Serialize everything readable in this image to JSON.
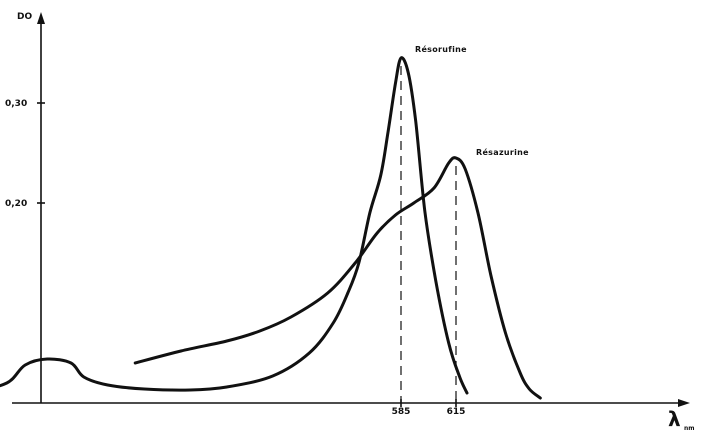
{
  "chart_data": {
    "type": "line",
    "ylabel": "DO",
    "xlabel": "λ",
    "xlabel_suffix": "nm",
    "yticks": [
      0.2,
      0.3
    ],
    "ytick_labels": [
      "0,20",
      "0,30"
    ],
    "xticks": [
      585,
      615
    ],
    "xtick_labels": [
      "585",
      "615"
    ],
    "ylim": [
      0,
      0.35
    ],
    "grid": false,
    "series": [
      {
        "name": "Résorufine",
        "peak": [
          585,
          0.345
        ],
        "points": [
          [
            350,
            0.01
          ],
          [
            370,
            0.02
          ],
          [
            380,
            0.038
          ],
          [
            392,
            0.044
          ],
          [
            405,
            0.04
          ],
          [
            412,
            0.026
          ],
          [
            425,
            0.018
          ],
          [
            445,
            0.014
          ],
          [
            470,
            0.013
          ],
          [
            490,
            0.016
          ],
          [
            515,
            0.027
          ],
          [
            535,
            0.05
          ],
          [
            548,
            0.08
          ],
          [
            556,
            0.11
          ],
          [
            562,
            0.14
          ],
          [
            568,
            0.19
          ],
          [
            574,
            0.228
          ],
          [
            578,
            0.272
          ],
          [
            582,
            0.32
          ],
          [
            585,
            0.345
          ],
          [
            589,
            0.33
          ],
          [
            593,
            0.282
          ],
          [
            598,
            0.192
          ],
          [
            604,
            0.122
          ],
          [
            611,
            0.06
          ],
          [
            617,
            0.026
          ],
          [
            621,
            0.01
          ]
        ]
      },
      {
        "name": "Résazurine",
        "peak": [
          615,
          0.245
        ],
        "points": [
          [
            440,
            0.04
          ],
          [
            465,
            0.052
          ],
          [
            490,
            0.062
          ],
          [
            508,
            0.072
          ],
          [
            525,
            0.086
          ],
          [
            545,
            0.11
          ],
          [
            560,
            0.14
          ],
          [
            572,
            0.17
          ],
          [
            582,
            0.188
          ],
          [
            592,
            0.2
          ],
          [
            603,
            0.215
          ],
          [
            611,
            0.24
          ],
          [
            615,
            0.245
          ],
          [
            620,
            0.234
          ],
          [
            627,
            0.19
          ],
          [
            634,
            0.128
          ],
          [
            642,
            0.07
          ],
          [
            650,
            0.03
          ],
          [
            655,
            0.014
          ],
          [
            661,
            0.005
          ]
        ]
      }
    ]
  }
}
